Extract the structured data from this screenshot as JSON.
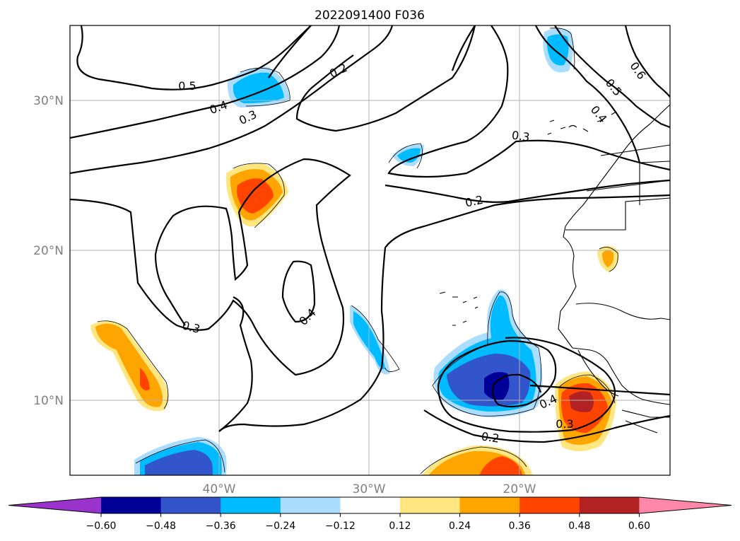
{
  "title": "2022091400 F036",
  "lat_labels": [
    "30°N",
    "20°N",
    "10°N"
  ],
  "lon_labels": [
    "40°W",
    "30°W",
    "20°W"
  ],
  "contour_labels": [
    "0.5",
    "0.4",
    "0.3",
    "0.2",
    "0.3",
    "0.6",
    "0.5",
    "0.4",
    "0.2",
    "0.3",
    "0.4",
    "0.4",
    "0.3",
    "0.2"
  ],
  "colorbar": {
    "ticks": [
      "−0.60",
      "−0.48",
      "−0.36",
      "−0.24",
      "−0.12",
      "0.12",
      "0.24",
      "0.36",
      "0.48",
      "0.60"
    ],
    "colors": [
      "#9933cc",
      "#000099",
      "#3355cc",
      "#00bbff",
      "#aaddff",
      "#ffffff",
      "#ffe680",
      "#ffa500",
      "#ff4400",
      "#b22222",
      "#ff88aa"
    ]
  },
  "chart_data": {
    "type": "contour-map",
    "title": "2022091400 F036",
    "lat_ticks": [
      10,
      20,
      30
    ],
    "lon_ticks": [
      -40,
      -30,
      -20
    ],
    "contour_levels": [
      0.2,
      0.3,
      0.4,
      0.5,
      0.6
    ],
    "fill_bounds": [
      -0.6,
      -0.48,
      -0.36,
      -0.24,
      -0.12,
      0.12,
      0.24,
      0.36,
      0.48,
      0.6
    ],
    "grid": true,
    "colorbar": "bottom"
  }
}
